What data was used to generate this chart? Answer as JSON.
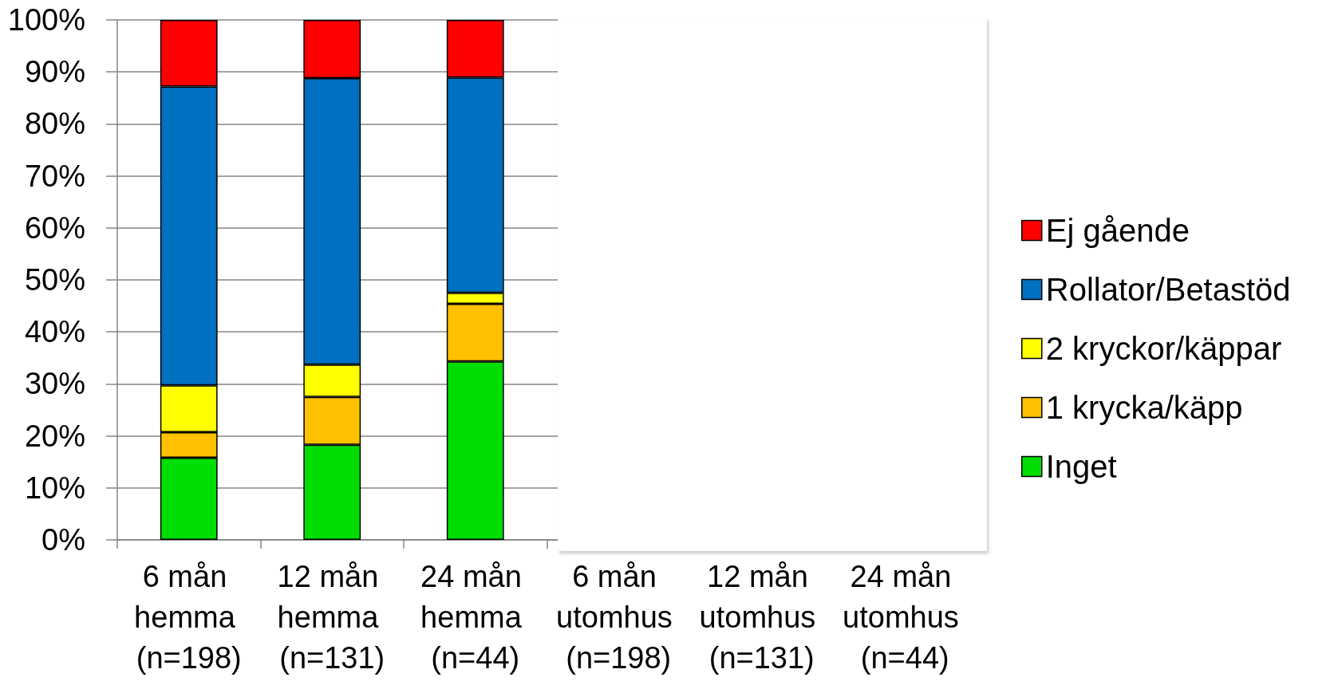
{
  "chart_data": {
    "type": "bar",
    "stacked": true,
    "categories": [
      "6 mån hemma (n=198)",
      "12 mån hemma (n=131)",
      "24 mån hemma (n=44)",
      "6 mån utomhus (n=198)",
      "12 mån utomhus (n=131)",
      "24 mån utomhus (n=44)"
    ],
    "series": [
      {
        "name": "Inget",
        "color": "#00dd00",
        "values": [
          15.8,
          18.3,
          34.3,
          null,
          null,
          null
        ]
      },
      {
        "name": "1 krycka/käpp",
        "color": "#ffc000",
        "values": [
          4.9,
          9.2,
          11.1,
          null,
          null,
          null
        ]
      },
      {
        "name": "2 kryckor/käppar",
        "color": "#ffff00",
        "values": [
          9.0,
          6.2,
          2.1,
          null,
          null,
          null
        ]
      },
      {
        "name": "Rollator/Betastöd",
        "color": "#0070c0",
        "values": [
          57.5,
          55.1,
          41.4,
          null,
          null,
          null
        ]
      },
      {
        "name": "Ej gående",
        "color": "#ff0000",
        "values": [
          12.8,
          11.2,
          11.1,
          null,
          null,
          null
        ]
      }
    ],
    "ylim": [
      0,
      100
    ],
    "yticks": [
      {
        "value": 0,
        "label": "0%"
      },
      {
        "value": 10,
        "label": "10%"
      },
      {
        "value": 20,
        "label": "20%"
      },
      {
        "value": 30,
        "label": "30%"
      },
      {
        "value": 40,
        "label": "40%"
      },
      {
        "value": 50,
        "label": "50%"
      },
      {
        "value": 60,
        "label": "60%"
      },
      {
        "value": 70,
        "label": "70%"
      },
      {
        "value": 80,
        "label": "80%"
      },
      {
        "value": 90,
        "label": "90%"
      },
      {
        "value": 100,
        "label": "100%"
      }
    ],
    "grid": "y",
    "legend": "right"
  }
}
